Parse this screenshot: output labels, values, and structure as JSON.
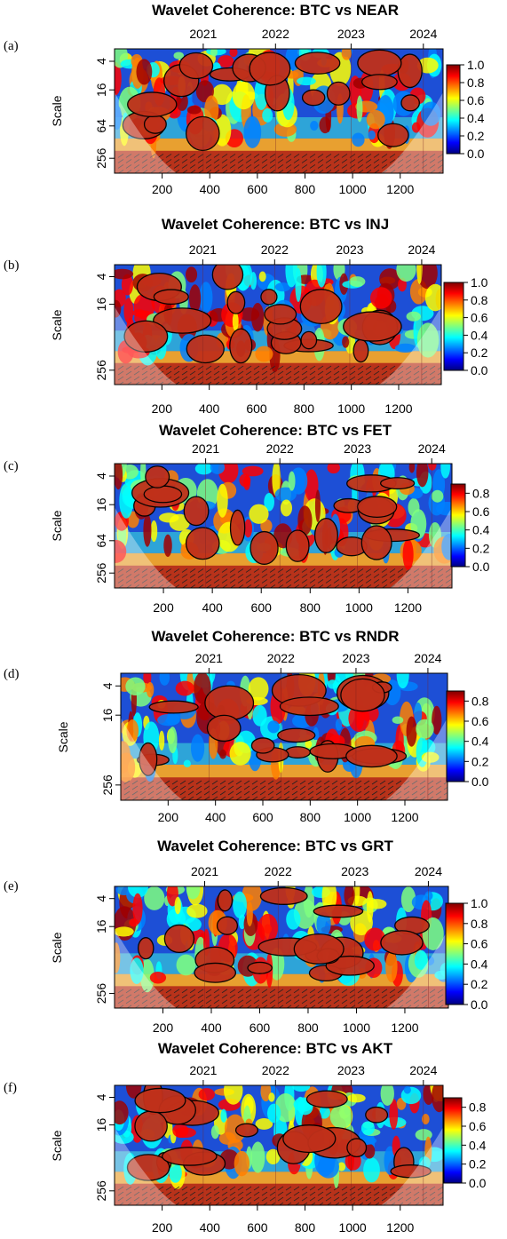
{
  "figure": {
    "colorbar_colors": [
      "#00007f",
      "#0000ff",
      "#007fff",
      "#00ffff",
      "#7fff7f",
      "#ffff00",
      "#ff7f00",
      "#ff0000",
      "#7f0000"
    ]
  },
  "chart_data": [
    {
      "type": "heatmap",
      "panel": "(a)",
      "title": "Wavelet Coherence: BTC vs NEAR",
      "ylabel": "Scale",
      "x_ticks": [
        "200",
        "400",
        "600",
        "800",
        "1000",
        "1200"
      ],
      "top_ticks": [
        "2021",
        "2022",
        "2023",
        "2024"
      ],
      "y_ticks": [
        "4",
        "16",
        "64",
        "256"
      ],
      "colorbar_ticks": [
        "0.0",
        "0.2",
        "0.4",
        "0.6",
        "0.8",
        "1.0"
      ],
      "zlim": [
        0,
        1
      ]
    },
    {
      "type": "heatmap",
      "panel": "(b)",
      "title": "Wavelet Coherence: BTC vs INJ",
      "ylabel": "Scale",
      "x_ticks": [
        "200",
        "400",
        "600",
        "800",
        "1000",
        "1200"
      ],
      "top_ticks": [
        "2021",
        "2022",
        "2023",
        "2024"
      ],
      "y_ticks": [
        "4",
        "16",
        "256"
      ],
      "colorbar_ticks": [
        "0.0",
        "0.2",
        "0.4",
        "0.6",
        "0.8",
        "1.0"
      ],
      "zlim": [
        0,
        1
      ]
    },
    {
      "type": "heatmap",
      "panel": "(c)",
      "title": "Wavelet Coherence: BTC vs FET",
      "ylabel": "Scale",
      "x_ticks": [
        "200",
        "400",
        "600",
        "800",
        "1000",
        "1200"
      ],
      "top_ticks": [
        "2021",
        "2022",
        "2023",
        "2024"
      ],
      "y_ticks": [
        "4",
        "16",
        "64",
        "256"
      ],
      "colorbar_ticks": [
        "0.0",
        "0.2",
        "0.4",
        "0.6",
        "0.8"
      ],
      "zlim": [
        0,
        0.9
      ]
    },
    {
      "type": "heatmap",
      "panel": "(d)",
      "title": "Wavelet Coherence: BTC vs RNDR",
      "ylabel": "Scale",
      "x_ticks": [
        "200",
        "400",
        "600",
        "800",
        "1000",
        "1200"
      ],
      "top_ticks": [
        "2021",
        "2022",
        "2023",
        "2024"
      ],
      "y_ticks": [
        "4",
        "16",
        "256"
      ],
      "colorbar_ticks": [
        "0.0",
        "0.2",
        "0.4",
        "0.6",
        "0.8"
      ],
      "zlim": [
        0,
        0.9
      ]
    },
    {
      "type": "heatmap",
      "panel": "(e)",
      "title": "Wavelet Coherence: BTC vs GRT",
      "ylabel": "Scale",
      "x_ticks": [
        "200",
        "400",
        "600",
        "800",
        "1000",
        "1200"
      ],
      "top_ticks": [
        "2021",
        "2022",
        "2023",
        "2024"
      ],
      "y_ticks": [
        "4",
        "16",
        "256"
      ],
      "colorbar_ticks": [
        "0.0",
        "0.2",
        "0.4",
        "0.6",
        "0.8",
        "1.0"
      ],
      "zlim": [
        0,
        1
      ]
    },
    {
      "type": "heatmap",
      "panel": "(f)",
      "title": "Wavelet Coherence: BTC vs AKT",
      "ylabel": "Scale",
      "x_ticks": [
        "200",
        "400",
        "600",
        "800",
        "1000",
        "1200"
      ],
      "top_ticks": [
        "2021",
        "2022",
        "2023",
        "2024"
      ],
      "y_ticks": [
        "4",
        "16",
        "256"
      ],
      "colorbar_ticks": [
        "0.0",
        "0.2",
        "0.4",
        "0.6",
        "0.8"
      ],
      "zlim": [
        0,
        0.9
      ]
    }
  ]
}
